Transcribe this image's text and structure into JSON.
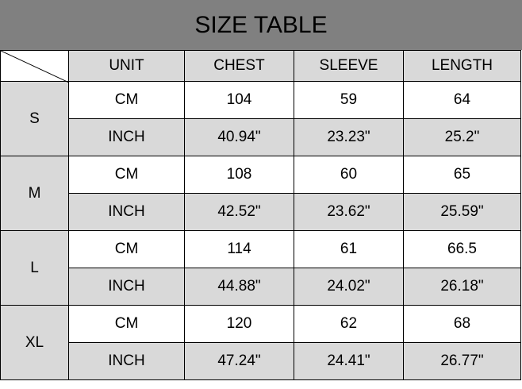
{
  "title": "SIZE TABLE",
  "headers": [
    "UNIT",
    "CHEST",
    "SLEEVE",
    "LENGTH"
  ],
  "rows": [
    {
      "size": "S",
      "cm": {
        "unit": "CM",
        "chest": "104",
        "sleeve": "59",
        "length": "64"
      },
      "inch": {
        "unit": "INCH",
        "chest": "40.94\"",
        "sleeve": "23.23\"",
        "length": "25.2\""
      }
    },
    {
      "size": "M",
      "cm": {
        "unit": "CM",
        "chest": "108",
        "sleeve": "60",
        "length": "65"
      },
      "inch": {
        "unit": "INCH",
        "chest": "42.52\"",
        "sleeve": "23.62\"",
        "length": "25.59\""
      }
    },
    {
      "size": "L",
      "cm": {
        "unit": "CM",
        "chest": "114",
        "sleeve": "61",
        "length": "66.5"
      },
      "inch": {
        "unit": "INCH",
        "chest": "44.88\"",
        "sleeve": "24.02\"",
        "length": "26.18\""
      }
    },
    {
      "size": "XL",
      "cm": {
        "unit": "CM",
        "chest": "120",
        "sleeve": "62",
        "length": "68"
      },
      "inch": {
        "unit": "INCH",
        "chest": "47.24\"",
        "sleeve": "24.41\"",
        "length": "26.77\""
      }
    }
  ]
}
